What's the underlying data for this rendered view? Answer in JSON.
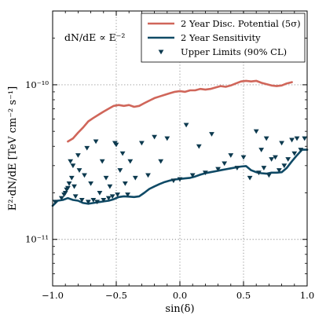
{
  "chart_data": {
    "type": "line",
    "xlabel": "sin(δ)",
    "ylabel": "E²·dN/dE [TeV cm⁻² s⁻¹]",
    "xlim": [
      -1.0,
      1.0
    ],
    "ylim": [
      5e-12,
      3e-10
    ],
    "yscale": "log",
    "grid": true,
    "legend_position": "top-right",
    "x_ticks": [
      -1.0,
      -0.5,
      0.0,
      0.5,
      1.0
    ],
    "x_tick_labels": [
      "−1.0",
      "−0.5",
      "0.0",
      "0.5",
      "1.0"
    ],
    "y_ticks": [
      1e-11,
      1e-10
    ],
    "y_tick_labels": [
      "10⁻¹¹",
      "10⁻¹⁰"
    ],
    "annotation": "dN/dE ∝ E⁻²",
    "colors": {
      "discovery": "#d0665a",
      "sensitivity": "#0f4a66",
      "upper_limits": "#0d3a4f",
      "grid": "#888888"
    },
    "series": [
      {
        "name": "2 Year Disc. Potential (5σ)",
        "kind": "line",
        "x": [
          -0.88,
          -0.84,
          -0.8,
          -0.76,
          -0.72,
          -0.68,
          -0.64,
          -0.6,
          -0.56,
          -0.52,
          -0.48,
          -0.44,
          -0.4,
          -0.36,
          -0.32,
          -0.28,
          -0.24,
          -0.2,
          -0.16,
          -0.12,
          -0.08,
          -0.04,
          0.0,
          0.04,
          0.08,
          0.12,
          0.16,
          0.2,
          0.24,
          0.28,
          0.32,
          0.36,
          0.4,
          0.44,
          0.48,
          0.52,
          0.56,
          0.6,
          0.64,
          0.68,
          0.72,
          0.76,
          0.8,
          0.84,
          0.88
        ],
        "y": [
          4.3e-11,
          4.5e-11,
          4.9e-11,
          5.3e-11,
          5.8e-11,
          6.1e-11,
          6.4e-11,
          6.7e-11,
          7e-11,
          7.3e-11,
          7.4e-11,
          7.3e-11,
          7.4e-11,
          7.2e-11,
          7.3e-11,
          7.6e-11,
          7.9e-11,
          8.2e-11,
          8.4e-11,
          8.6e-11,
          8.8e-11,
          9e-11,
          9.1e-11,
          9e-11,
          9.2e-11,
          9.2e-11,
          9.4e-11,
          9.3e-11,
          9.4e-11,
          9.6e-11,
          9.8e-11,
          9.7e-11,
          9.9e-11,
          1.02e-10,
          1.05e-10,
          1.06e-10,
          1.05e-10,
          1.06e-10,
          1.03e-10,
          1.01e-10,
          9.9e-11,
          9.8e-11,
          9.9e-11,
          1.02e-10,
          1.04e-10
        ]
      },
      {
        "name": "2 Year Sensitivity",
        "kind": "line",
        "x": [
          -1.0,
          -0.96,
          -0.92,
          -0.88,
          -0.84,
          -0.8,
          -0.76,
          -0.72,
          -0.68,
          -0.64,
          -0.6,
          -0.56,
          -0.52,
          -0.48,
          -0.44,
          -0.4,
          -0.36,
          -0.32,
          -0.28,
          -0.24,
          -0.2,
          -0.16,
          -0.12,
          -0.08,
          -0.04,
          0.0,
          0.04,
          0.08,
          0.12,
          0.16,
          0.2,
          0.24,
          0.28,
          0.32,
          0.36,
          0.4,
          0.44,
          0.48,
          0.52,
          0.56,
          0.6,
          0.64,
          0.68,
          0.72,
          0.76,
          0.8,
          0.84,
          0.88,
          0.92,
          0.96,
          1.0
        ],
        "y": [
          1.65e-11,
          1.78e-11,
          1.8e-11,
          1.85e-11,
          1.8e-11,
          1.78e-11,
          1.72e-11,
          1.7e-11,
          1.72e-11,
          1.74e-11,
          1.76e-11,
          1.78e-11,
          1.82e-11,
          1.88e-11,
          1.9e-11,
          1.89e-11,
          1.88e-11,
          1.9e-11,
          2e-11,
          2.12e-11,
          2.2e-11,
          2.28e-11,
          2.35e-11,
          2.4e-11,
          2.44e-11,
          2.46e-11,
          2.48e-11,
          2.5e-11,
          2.55e-11,
          2.62e-11,
          2.68e-11,
          2.72e-11,
          2.76e-11,
          2.8e-11,
          2.84e-11,
          2.88e-11,
          2.92e-11,
          2.96e-11,
          2.98e-11,
          2.8e-11,
          2.72e-11,
          2.68e-11,
          2.66e-11,
          2.7e-11,
          2.7e-11,
          2.72e-11,
          2.9e-11,
          3.2e-11,
          3.5e-11,
          3.8e-11,
          3.8e-11
        ]
      },
      {
        "name": "Upper Limits (90% CL)",
        "kind": "scatter",
        "x": [
          -0.98,
          -0.93,
          -0.91,
          -0.9,
          -0.89,
          -0.88,
          -0.87,
          -0.86,
          -0.85,
          -0.84,
          -0.83,
          -0.82,
          -0.8,
          -0.79,
          -0.77,
          -0.75,
          -0.73,
          -0.72,
          -0.7,
          -0.68,
          -0.66,
          -0.65,
          -0.63,
          -0.61,
          -0.6,
          -0.58,
          -0.56,
          -0.55,
          -0.53,
          -0.51,
          -0.5,
          -0.49,
          -0.47,
          -0.45,
          -0.43,
          -0.41,
          -0.39,
          -0.35,
          -0.3,
          -0.25,
          -0.2,
          -0.15,
          -0.1,
          -0.05,
          0.0,
          0.05,
          0.1,
          0.15,
          0.2,
          0.25,
          0.3,
          0.35,
          0.4,
          0.45,
          0.5,
          0.55,
          0.6,
          0.62,
          0.64,
          0.66,
          0.68,
          0.7,
          0.72,
          0.75,
          0.78,
          0.8,
          0.82,
          0.85,
          0.88,
          0.9,
          0.92,
          0.95,
          0.98
        ],
        "y": [
          1.75e-11,
          1.85e-11,
          1.95e-11,
          2e-11,
          2.1e-11,
          2.15e-11,
          2.3e-11,
          3.2e-11,
          2.5e-11,
          3e-11,
          2.2e-11,
          1.9e-11,
          3.5e-11,
          2.8e-11,
          1.8e-11,
          2.6e-11,
          3.9e-11,
          1.75e-11,
          2.3e-11,
          1.8e-11,
          4.3e-11,
          1.75e-11,
          2e-11,
          3.2e-11,
          1.8e-11,
          2.5e-11,
          1.85e-11,
          2.2e-11,
          1.9e-11,
          4.2e-11,
          4.1e-11,
          1.95e-11,
          2.8e-11,
          3.6e-11,
          2.3e-11,
          1.95e-11,
          3.2e-11,
          2.5e-11,
          4.2e-11,
          2.6e-11,
          4.6e-11,
          3.2e-11,
          4.5e-11,
          2.4e-11,
          2.45e-11,
          5.5e-11,
          2.6e-11,
          4e-11,
          2.7e-11,
          4.8e-11,
          2.85e-11,
          3.1e-11,
          3.5e-11,
          2.9e-11,
          3.4e-11,
          2.5e-11,
          5e-11,
          2.7e-11,
          3.8e-11,
          2.9e-11,
          4.5e-11,
          2.6e-11,
          3.3e-11,
          3.4e-11,
          2.8e-11,
          4.2e-11,
          3e-11,
          3.3e-11,
          4.4e-11,
          3.6e-11,
          4.5e-11,
          3.8e-11,
          4.5e-11
        ]
      }
    ]
  }
}
